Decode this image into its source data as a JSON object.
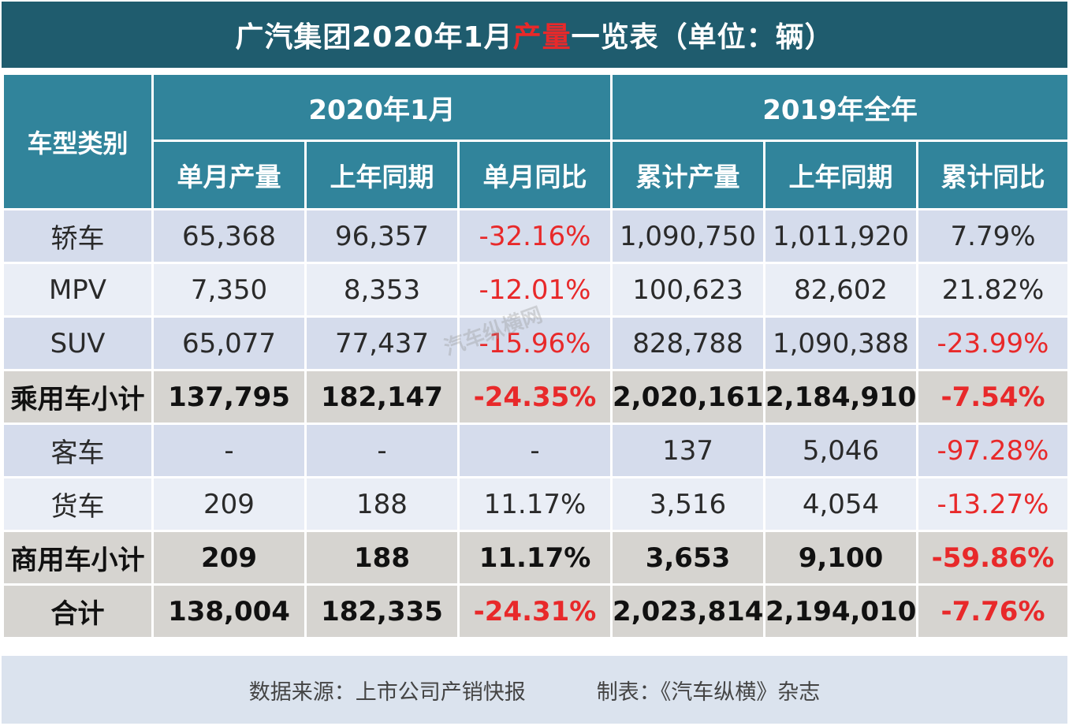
{
  "title": {
    "prefix": "广汽集团2020年1月",
    "highlight": "产量",
    "suffix": "一览表（单位：辆）"
  },
  "header": {
    "type_label": "车型类别",
    "group_2020": "2020年1月",
    "group_2019": "2019年全年",
    "sub": [
      "单月产量",
      "上年同期",
      "单月同比",
      "累计产量",
      "上年同期",
      "累计同比"
    ]
  },
  "rows": [
    {
      "label": "轿车",
      "style": "a",
      "cells": [
        "65,368",
        "96,357",
        "-32.16%",
        "1,090,750",
        "1,011,920",
        "7.79%"
      ]
    },
    {
      "label": "MPV",
      "style": "b",
      "cells": [
        "7,350",
        "8,353",
        "-12.01%",
        "100,623",
        "82,602",
        "21.82%"
      ]
    },
    {
      "label": "SUV",
      "style": "a",
      "cells": [
        "65,077",
        "77,437",
        "-15.96%",
        "828,788",
        "1,090,388",
        "-23.99%"
      ]
    },
    {
      "label": "乘用车小计",
      "style": "sub",
      "cells": [
        "137,795",
        "182,147",
        "-24.35%",
        "2,020,161",
        "2,184,910",
        "-7.54%"
      ]
    },
    {
      "label": "客车",
      "style": "a",
      "cells": [
        "-",
        "-",
        "-",
        "137",
        "5,046",
        "-97.28%"
      ]
    },
    {
      "label": "货车",
      "style": "b",
      "cells": [
        "209",
        "188",
        "11.17%",
        "3,516",
        "4,054",
        "-13.27%"
      ]
    },
    {
      "label": "商用车小计",
      "style": "sub",
      "cells": [
        "209",
        "188",
        "11.17%",
        "3,653",
        "9,100",
        "-59.86%"
      ]
    },
    {
      "label": "合计",
      "style": "sub",
      "cells": [
        "138,004",
        "182,335",
        "-24.31%",
        "2,023,814",
        "2,194,010",
        "-7.76%"
      ]
    }
  ],
  "footer": {
    "source": "数据来源：上市公司产销快报",
    "maker": "制表：《汽车纵横》杂志"
  },
  "watermark": "汽车纵横网",
  "colors": {
    "title_bg": "#1f5c6e",
    "header_bg": "#31849b",
    "negative": "#e8292a"
  }
}
